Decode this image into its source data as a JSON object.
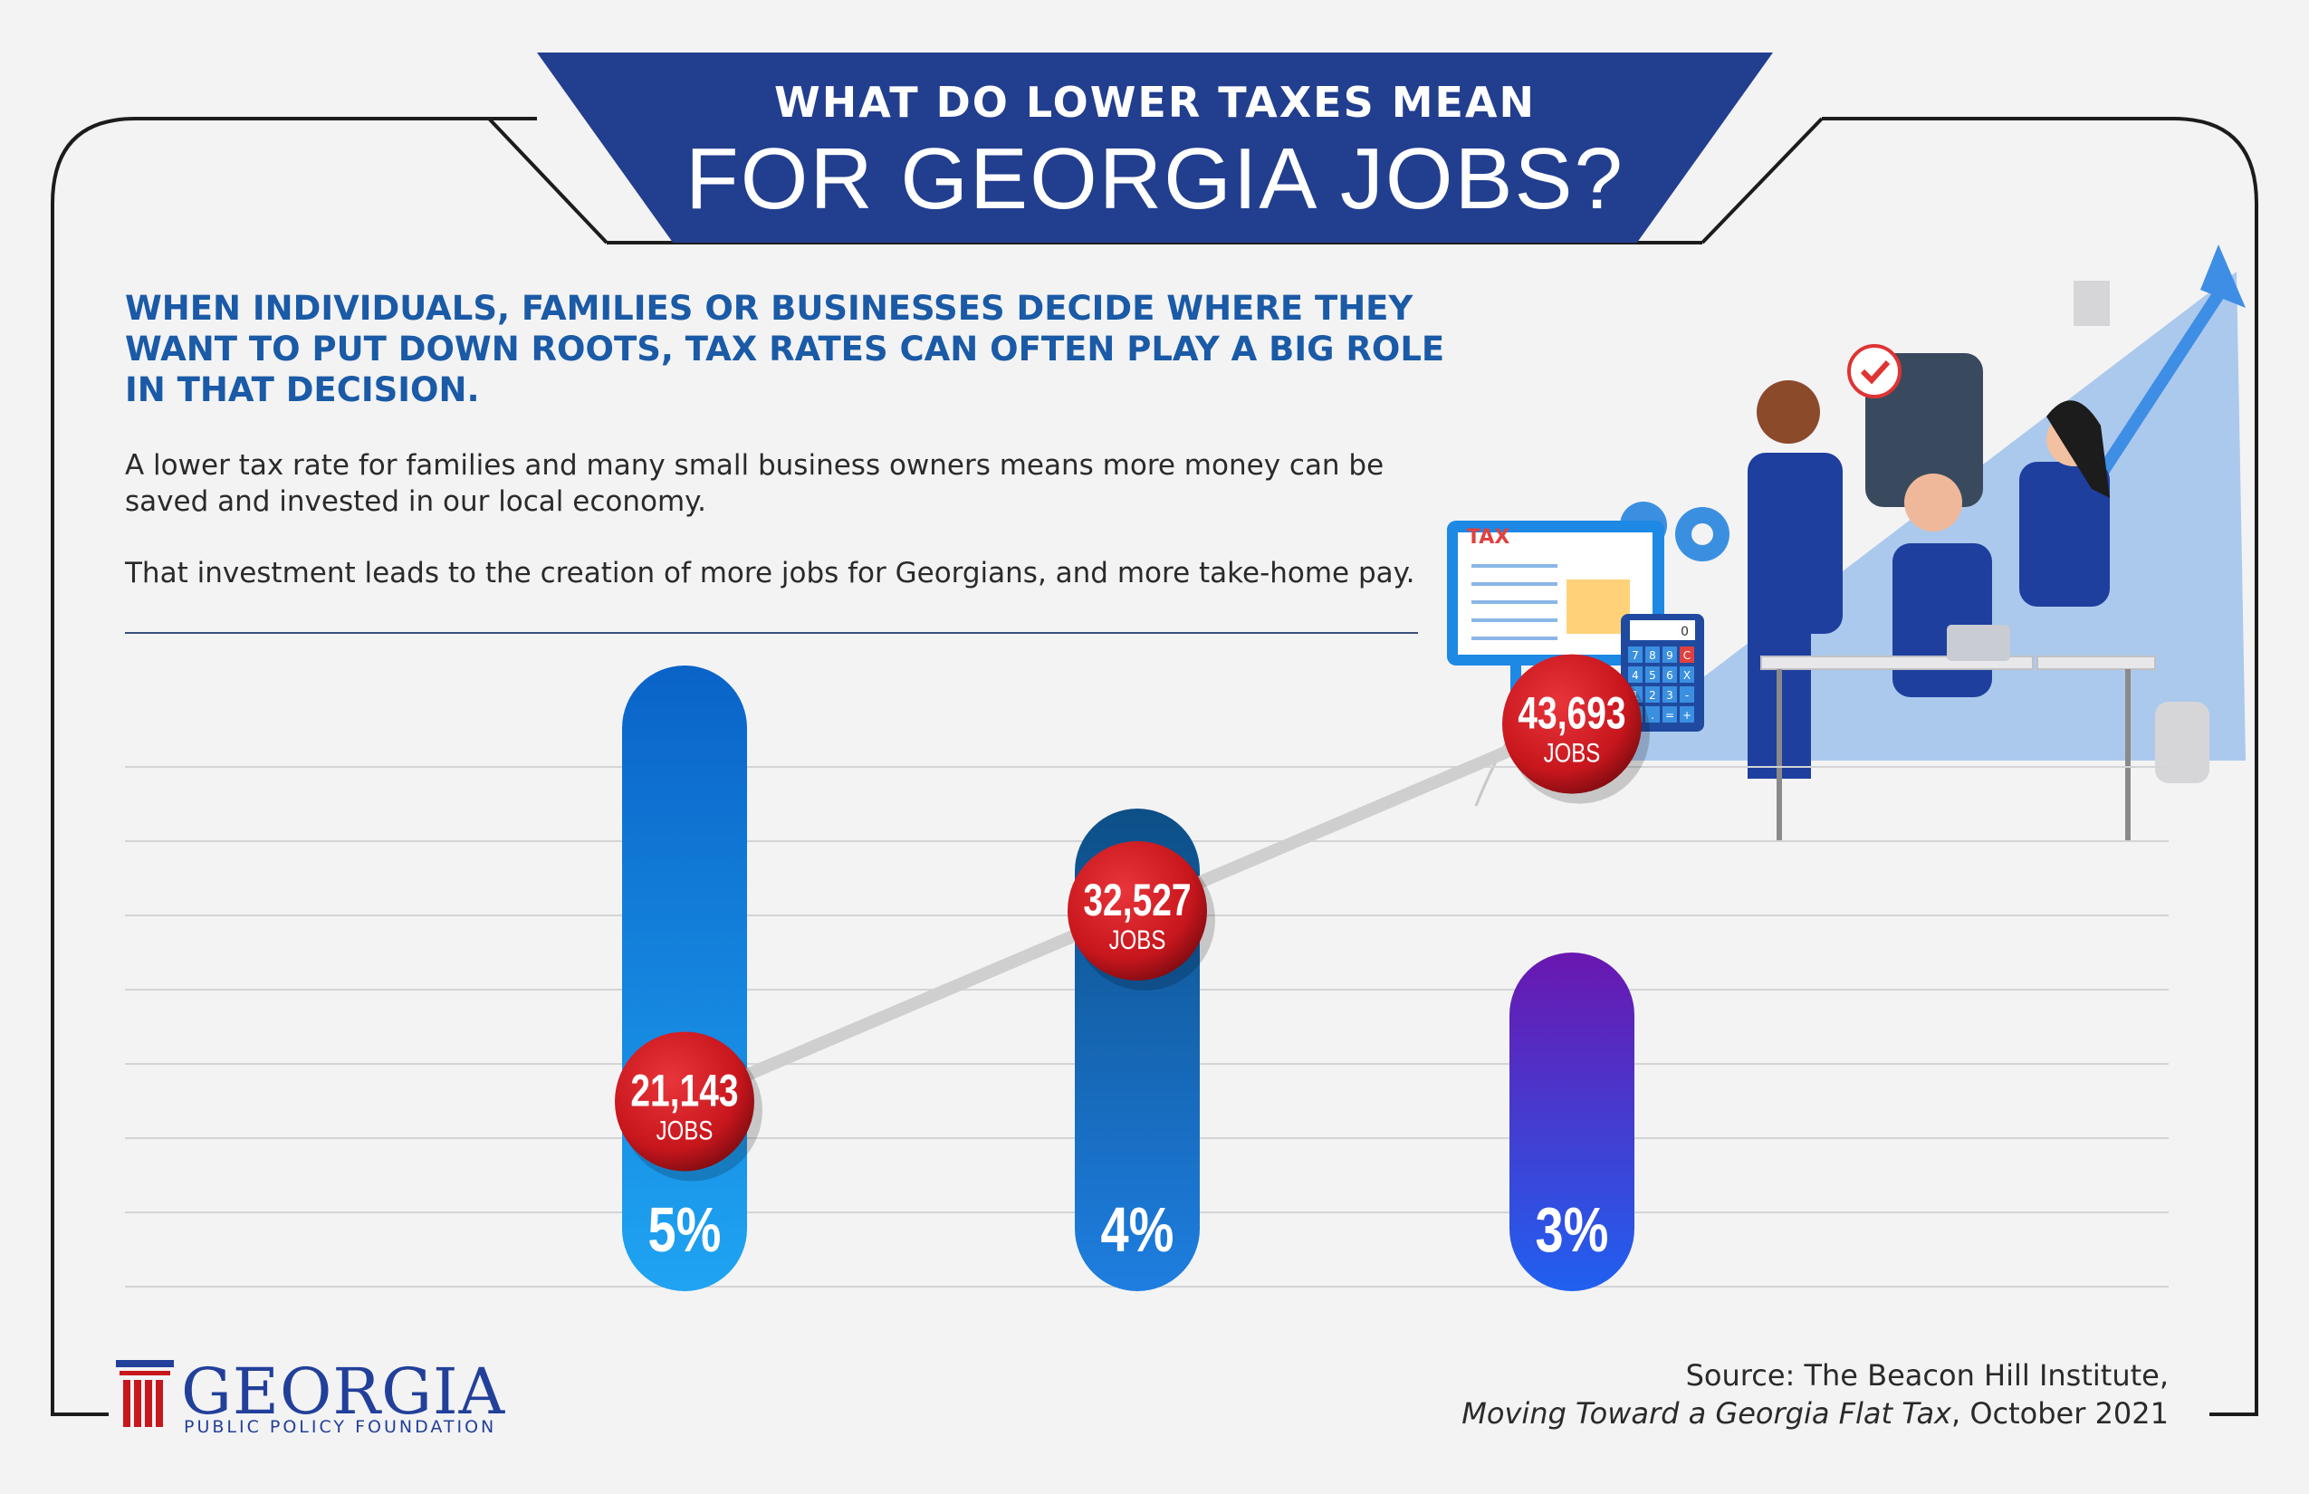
{
  "banner": {
    "line1": "WHAT DO LOWER TAXES MEAN",
    "line2": "FOR GEORGIA JOBS?"
  },
  "intro": {
    "headline": "WHEN INDIVIDUALS, FAMILIES OR BUSINESSES DECIDE WHERE THEY WANT TO PUT DOWN ROOTS, TAX RATES CAN OFTEN PLAY A BIG ROLE IN THAT DECISION.",
    "paragraph1": "A lower tax rate for families and many small business owners means more money can be saved and invested in our local economy.",
    "paragraph2": "That investment leads to the creation of more jobs for Georgians, and more take-home pay."
  },
  "illustration": {
    "tax_label": "TAX",
    "calculator_keys": [
      "7",
      "8",
      "9",
      "C",
      "4",
      "5",
      "6",
      "X",
      "1",
      "2",
      "3",
      "-",
      "0",
      ".",
      "=",
      "+"
    ],
    "calculator_display": "0"
  },
  "chart_data": {
    "type": "bar",
    "categories": [
      "5%",
      "4%",
      "3%"
    ],
    "values": [
      21143,
      32527,
      43693
    ],
    "point_labels": [
      "21,143",
      "32,527",
      "43,693"
    ],
    "unit_label": "JOBS",
    "bar_colors": [
      "#1e8ee8",
      "#1a73d3",
      "#5b23c6"
    ]
  },
  "source": {
    "line1": "Source: The Beacon Hill Institute,",
    "line2_italic": "Moving Toward a Georgia Flat Tax",
    "line2_rest": ", October 2021"
  },
  "logo": {
    "name": "GEORGIA",
    "subtitle": "PUBLIC POLICY FOUNDATION"
  },
  "colors": {
    "banner": "#223e8e",
    "headline": "#1a5aa6",
    "marker": "#c8161d",
    "connector": "#cfcfcf"
  }
}
